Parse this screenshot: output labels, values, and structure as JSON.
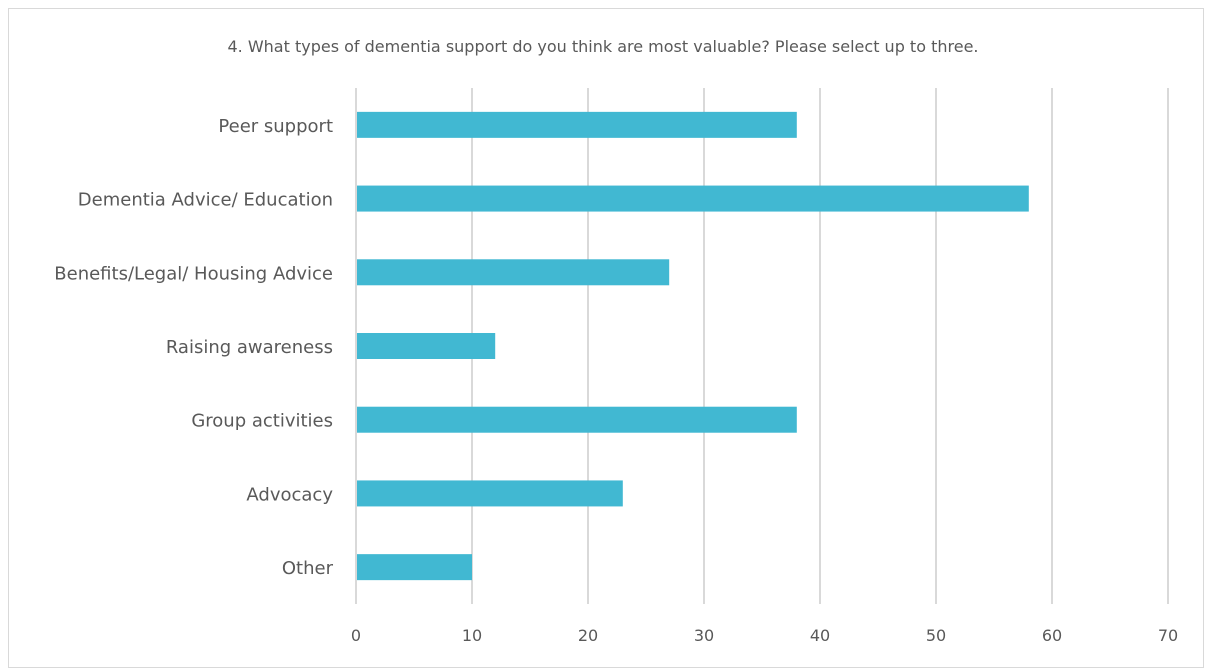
{
  "chart_data": {
    "type": "bar",
    "orientation": "horizontal",
    "title": "4. What types of dementia support do you think are most valuable? Please select up to three.",
    "categories": [
      "Peer support",
      "Dementia Advice/ Education",
      "Benefits/Legal/ Housing Advice",
      "Raising awareness",
      "Group activities",
      "Advocacy",
      "Other"
    ],
    "values": [
      38,
      58,
      27,
      12,
      38,
      23,
      10
    ],
    "xlim": [
      0,
      70
    ],
    "xticks": [
      0,
      10,
      20,
      30,
      40,
      50,
      60,
      70
    ],
    "grid": "vertical",
    "bar_color": "#41B8D2"
  }
}
